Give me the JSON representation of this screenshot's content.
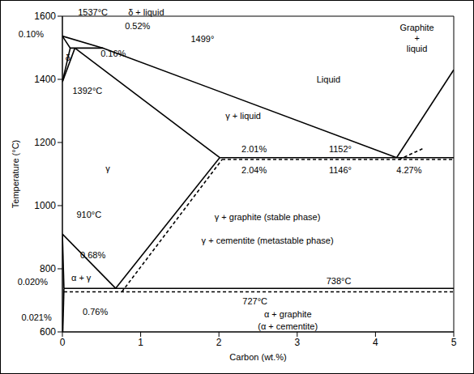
{
  "chart_data": {
    "type": "line",
    "color": "#000000",
    "xlabel": "Carbon (wt.%)",
    "ylabel": "Temperature (°C)",
    "xlim": [
      0,
      5
    ],
    "ylim": [
      600,
      1600
    ],
    "xticks": [
      0,
      1,
      2,
      3,
      4,
      5
    ],
    "yticks": [
      600,
      800,
      1000,
      1200,
      1400,
      1600
    ],
    "grid": false,
    "series": [
      {
        "x": [
          0,
          0.52,
          4.27
        ],
        "values": [
          1537,
          1499,
          1152
        ],
        "line_style": "solid"
      },
      {
        "x": [
          4.27,
          5
        ],
        "values": [
          1152,
          1430
        ],
        "line_style": "solid"
      },
      {
        "x": [
          4.3,
          4.6
        ],
        "values": [
          1146,
          1180
        ],
        "line_style": "dashed"
      },
      {
        "x": [
          0,
          0.1,
          0.52
        ],
        "values": [
          1537,
          1499,
          1499
        ],
        "line_style": "solid"
      },
      {
        "x": [
          0,
          0.1
        ],
        "values": [
          1392,
          1499
        ],
        "line_style": "solid"
      },
      {
        "x": [
          0,
          0.16
        ],
        "values": [
          1392,
          1499
        ],
        "line_style": "solid"
      },
      {
        "x": [
          0.16,
          2.01
        ],
        "values": [
          1499,
          1152
        ],
        "line_style": "solid"
      },
      {
        "x": [
          2.01,
          5
        ],
        "values": [
          1152,
          1152
        ],
        "line_style": "solid"
      },
      {
        "x": [
          2.04,
          5
        ],
        "values": [
          1146,
          1146
        ],
        "line_style": "dashed"
      },
      {
        "x": [
          0.68,
          2.01
        ],
        "values": [
          738,
          1152
        ],
        "line_style": "solid"
      },
      {
        "x": [
          0.76,
          2.04
        ],
        "values": [
          727,
          1146
        ],
        "line_style": "dashed"
      },
      {
        "x": [
          0,
          0.68
        ],
        "values": [
          910,
          738
        ],
        "line_style": "solid"
      },
      {
        "x": [
          0,
          0.02
        ],
        "values": [
          910,
          738
        ],
        "line_style": "solid"
      },
      {
        "x": [
          0.02,
          5
        ],
        "values": [
          738,
          738
        ],
        "line_style": "solid"
      },
      {
        "x": [
          0.021,
          5
        ],
        "values": [
          727,
          727
        ],
        "line_style": "dashed"
      },
      {
        "x": [
          0.02,
          0.005
        ],
        "values": [
          738,
          600
        ],
        "line_style": "solid"
      }
    ],
    "annotations": [
      {
        "text": "1537°C",
        "x": 0.39,
        "y": 1612
      },
      {
        "text": "δ + liquid",
        "x": 1.07,
        "y": 1612
      },
      {
        "text": "0.10%",
        "x": -0.4,
        "y": 1543
      },
      {
        "text": "0.52%",
        "x": 0.96,
        "y": 1569
      },
      {
        "text": "δ",
        "x": 0.07,
        "y": 1470
      },
      {
        "text": "0.16%",
        "x": 0.65,
        "y": 1482
      },
      {
        "text": "1499°",
        "x": 1.79,
        "y": 1528
      },
      {
        "text": "1392°C",
        "x": 0.32,
        "y": 1365
      },
      {
        "text": "Liquid",
        "x": 3.4,
        "y": 1400
      },
      {
        "text": "Graphite\n+\nliquid",
        "x": 4.53,
        "y": 1530
      },
      {
        "text": "γ + liquid",
        "x": 2.31,
        "y": 1285
      },
      {
        "text": "γ",
        "x": 0.58,
        "y": 1118
      },
      {
        "text": "2.01%",
        "x": 2.45,
        "y": 1180
      },
      {
        "text": "2.04%",
        "x": 2.45,
        "y": 1112
      },
      {
        "text": "1152°",
        "x": 3.55,
        "y": 1180
      },
      {
        "text": "1146°",
        "x": 3.55,
        "y": 1112
      },
      {
        "text": "4.27%",
        "x": 4.43,
        "y": 1112
      },
      {
        "text": "γ + graphite (stable phase)",
        "x": 2.62,
        "y": 964
      },
      {
        "text": "γ + cementite (metastable phase)",
        "x": 2.62,
        "y": 890
      },
      {
        "text": "910°C",
        "x": 0.34,
        "y": 972
      },
      {
        "text": "0.68%",
        "x": 0.39,
        "y": 844
      },
      {
        "text": "α + γ",
        "x": 0.24,
        "y": 772
      },
      {
        "text": "0.020%",
        "x": -0.38,
        "y": 759
      },
      {
        "text": "738°C",
        "x": 3.53,
        "y": 762
      },
      {
        "text": "727°C",
        "x": 2.46,
        "y": 697
      },
      {
        "text": "0.76%",
        "x": 0.42,
        "y": 664
      },
      {
        "text": "0.021%",
        "x": -0.33,
        "y": 646
      },
      {
        "text": "α + graphite",
        "x": 2.88,
        "y": 656
      },
      {
        "text": "(α + cementite)",
        "x": 2.88,
        "y": 618
      }
    ]
  }
}
